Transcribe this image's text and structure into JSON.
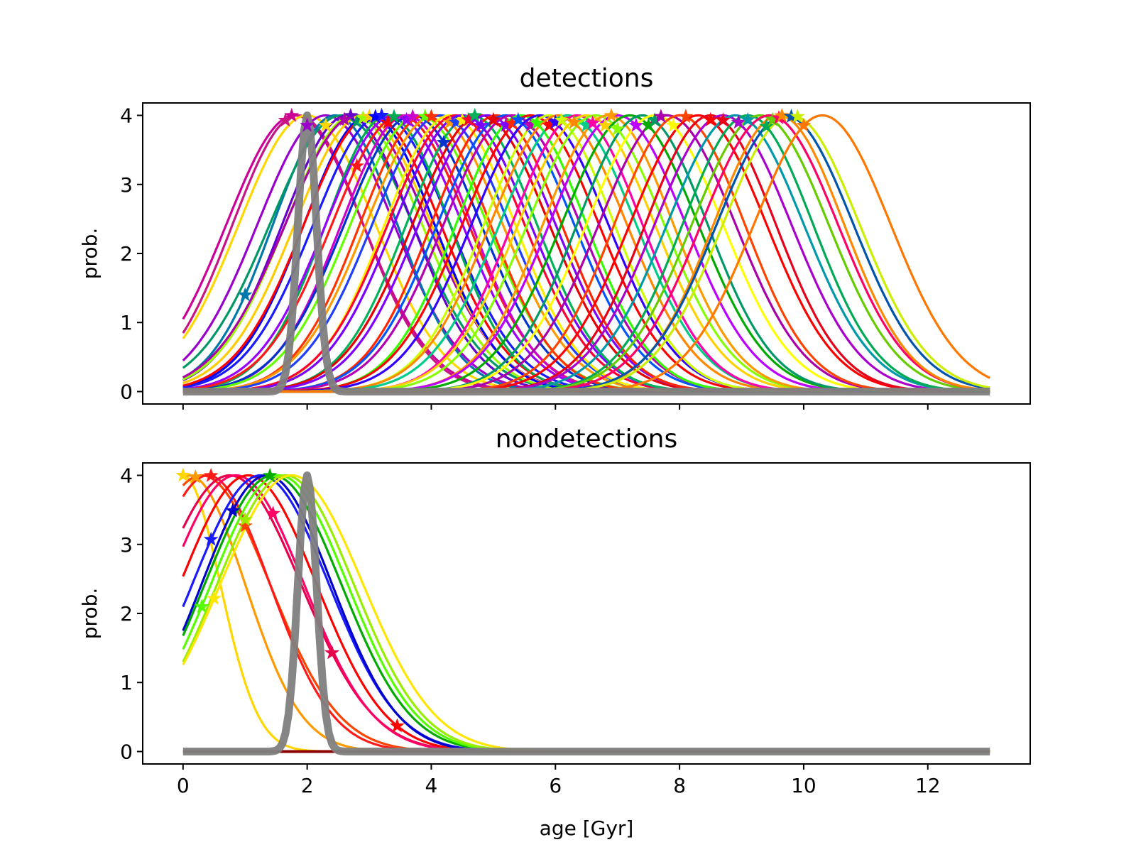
{
  "chart_data": [
    {
      "type": "line",
      "title": "detections",
      "xlabel": "",
      "ylabel": "prob.",
      "xlim": [
        -0.65,
        13.65
      ],
      "ylim": [
        -0.18,
        4.18
      ],
      "xticks": [
        0,
        2,
        4,
        6,
        8,
        10,
        12
      ],
      "xtick_labels_shown": false,
      "yticks": [
        0,
        1,
        2,
        3,
        4
      ],
      "grid": false,
      "curve_shape": "gaussian",
      "curve_peak": 4,
      "x_range": [
        0,
        13
      ],
      "reference_curve": {
        "center": 2.0,
        "sigma": 0.15,
        "peak": 4,
        "color": "#808080",
        "alpha": 1
      },
      "series": [
        {
          "mu": 1.8,
          "sigma": 1.1,
          "color": "#cc0099",
          "star_x": 1.75
        },
        {
          "mu": 1.85,
          "sigma": 1.05,
          "color": "#c71585",
          "star_x": 1.65
        },
        {
          "mu": 2.0,
          "sigma": 1.1,
          "color": "#ffd700",
          "star_x": 2.3
        },
        {
          "mu": 2.3,
          "sigma": 1.1,
          "color": "#9900cc",
          "star_x": 2.0
        },
        {
          "mu": 2.45,
          "sigma": 1.0,
          "color": "#0077aa",
          "star_x": 1.0
        },
        {
          "mu": 2.55,
          "sigma": 1.15,
          "color": "#009966",
          "star_x": 2.8
        },
        {
          "mu": 2.65,
          "sigma": 1.05,
          "color": "#6600cc",
          "star_x": 2.7
        },
        {
          "mu": 2.75,
          "sigma": 1.1,
          "color": "#99ff00",
          "star_x": 2.9
        },
        {
          "mu": 2.8,
          "sigma": 1.15,
          "color": "#aa00aa",
          "star_x": 2.6
        },
        {
          "mu": 2.9,
          "sigma": 1.1,
          "color": "#ffcc00",
          "star_x": 3.0
        },
        {
          "mu": 3.0,
          "sigma": 1.05,
          "color": "#0000ff",
          "star_x": 3.1
        },
        {
          "mu": 3.05,
          "sigma": 1.1,
          "color": "#ff0000",
          "star_x": 3.3
        },
        {
          "mu": 3.2,
          "sigma": 1.1,
          "color": "#1a1aff",
          "star_x": 3.2
        },
        {
          "mu": 3.3,
          "sigma": 1.0,
          "color": "#00aa55",
          "star_x": 3.4
        },
        {
          "mu": 3.4,
          "sigma": 1.1,
          "color": "#9900ff",
          "star_x": 3.6
        },
        {
          "mu": 3.5,
          "sigma": 1.1,
          "color": "#ff1a1a",
          "star_x": 2.8
        },
        {
          "mu": 3.6,
          "sigma": 1.05,
          "color": "#cc00cc",
          "star_x": 3.7
        },
        {
          "mu": 3.7,
          "sigma": 1.1,
          "color": "#0033cc",
          "star_x": 4.2
        },
        {
          "mu": 3.8,
          "sigma": 1.1,
          "color": "#66ff00",
          "star_x": 3.9
        },
        {
          "mu": 3.9,
          "sigma": 1.05,
          "color": "#ff3300",
          "star_x": 4.0
        },
        {
          "mu": 4.05,
          "sigma": 1.1,
          "color": "#ff9900",
          "star_x": 4.3
        },
        {
          "mu": 4.15,
          "sigma": 1.1,
          "color": "#1f3fff",
          "star_x": 4.4
        },
        {
          "mu": 4.3,
          "sigma": 1.05,
          "color": "#ffee00",
          "star_x": 4.5
        },
        {
          "mu": 4.4,
          "sigma": 1.1,
          "color": "#ff0033",
          "star_x": 4.6
        },
        {
          "mu": 4.5,
          "sigma": 1.1,
          "color": "#7a00ff",
          "star_x": 4.8
        },
        {
          "mu": 4.65,
          "sigma": 1.05,
          "color": "#00b359",
          "star_x": 4.7
        },
        {
          "mu": 4.8,
          "sigma": 1.1,
          "color": "#e60000",
          "star_x": 5.0
        },
        {
          "mu": 4.9,
          "sigma": 1.1,
          "color": "#8000ff",
          "star_x": 5.2
        },
        {
          "mu": 5.05,
          "sigma": 1.05,
          "color": "#ff2600",
          "star_x": 5.3
        },
        {
          "mu": 5.2,
          "sigma": 1.1,
          "color": "#0055ff",
          "star_x": 5.4
        },
        {
          "mu": 5.3,
          "sigma": 1.1,
          "color": "#b300b3",
          "star_x": 5.6
        },
        {
          "mu": 5.45,
          "sigma": 1.05,
          "color": "#33ff00",
          "star_x": 5.7
        },
        {
          "mu": 5.6,
          "sigma": 1.1,
          "color": "#ff0000",
          "star_x": 5.9
        },
        {
          "mu": 5.75,
          "sigma": 1.1,
          "color": "#3300ff",
          "star_x": 6.0
        },
        {
          "mu": 5.9,
          "sigma": 1.05,
          "color": "#ccff00",
          "star_x": 6.1
        },
        {
          "mu": 6.05,
          "sigma": 1.1,
          "color": "#ff8800",
          "star_x": 6.3
        },
        {
          "mu": 6.2,
          "sigma": 1.1,
          "color": "#00cc88",
          "star_x": 6.5
        },
        {
          "mu": 6.35,
          "sigma": 1.05,
          "color": "#ff00aa",
          "star_x": 6.6
        },
        {
          "mu": 6.5,
          "sigma": 1.1,
          "color": "#ffd000",
          "star_x": 6.8
        },
        {
          "mu": 6.65,
          "sigma": 1.1,
          "color": "#88ff00",
          "star_x": 7.0
        },
        {
          "mu": 6.85,
          "sigma": 1.05,
          "color": "#ff9900",
          "star_x": 6.9
        },
        {
          "mu": 7.0,
          "sigma": 1.1,
          "color": "#bb00ff",
          "star_x": 7.3
        },
        {
          "mu": 7.2,
          "sigma": 1.1,
          "color": "#00aa00",
          "star_x": 7.5
        },
        {
          "mu": 7.4,
          "sigma": 1.05,
          "color": "#009966",
          "star_x": 7.6
        },
        {
          "mu": 7.6,
          "sigma": 1.1,
          "color": "#ffff00",
          "star_x": 7.9
        },
        {
          "mu": 7.8,
          "sigma": 1.1,
          "color": "#aa00aa",
          "star_x": 7.7
        },
        {
          "mu": 8.0,
          "sigma": 1.05,
          "color": "#ff4400",
          "star_x": 8.1
        },
        {
          "mu": 8.3,
          "sigma": 1.1,
          "color": "#ff0000",
          "star_x": 8.5
        },
        {
          "mu": 8.5,
          "sigma": 1.05,
          "color": "#e6001a",
          "star_x": 8.7
        },
        {
          "mu": 8.7,
          "sigma": 1.1,
          "color": "#aa00cc",
          "star_x": 8.95
        },
        {
          "mu": 8.9,
          "sigma": 1.1,
          "color": "#0099aa",
          "star_x": 9.1
        },
        {
          "mu": 9.1,
          "sigma": 1.05,
          "color": "#00aa55",
          "star_x": 9.4
        },
        {
          "mu": 9.3,
          "sigma": 1.1,
          "color": "#66cc00",
          "star_x": 9.5
        },
        {
          "mu": 9.45,
          "sigma": 1.1,
          "color": "#ff0066",
          "star_x": 9.6
        },
        {
          "mu": 9.6,
          "sigma": 1.05,
          "color": "#ff8800",
          "star_x": 9.65
        },
        {
          "mu": 9.7,
          "sigma": 1.1,
          "color": "#0055aa",
          "star_x": 9.8
        },
        {
          "mu": 9.8,
          "sigma": 1.1,
          "color": "#ccee00",
          "star_x": 9.9
        },
        {
          "mu": 10.3,
          "sigma": 1.1,
          "color": "#ff7700",
          "star_x": 10.0
        }
      ]
    },
    {
      "type": "line",
      "title": "nondetections",
      "xlabel": "age [Gyr]",
      "ylabel": "prob.",
      "xlim": [
        -0.65,
        13.65
      ],
      "ylim": [
        -0.18,
        4.18
      ],
      "xticks": [
        0,
        2,
        4,
        6,
        8,
        10,
        12
      ],
      "xtick_labels_shown": true,
      "yticks": [
        0,
        1,
        2,
        3,
        4
      ],
      "grid": false,
      "curve_shape": "gaussian",
      "curve_peak": 4,
      "x_range": [
        0,
        13
      ],
      "reference_curve": {
        "center": 2.0,
        "sigma": 0.15,
        "peak": 4,
        "color": "#808080",
        "alpha": 1
      },
      "series": [
        {
          "mu": 0.0,
          "sigma": 0.6,
          "color": "#ffd700",
          "star_x": 0.0
        },
        {
          "mu": 0.1,
          "sigma": 0.9,
          "color": "#ff9900",
          "star_x": 0.2
        },
        {
          "mu": 0.3,
          "sigma": 1.1,
          "color": "#ff4400",
          "star_x": 1.0
        },
        {
          "mu": 0.4,
          "sigma": 1.0,
          "color": "#ff1a1a",
          "star_x": 0.45
        },
        {
          "mu": 0.75,
          "sigma": 1.15,
          "color": "#e6004c",
          "star_x": 2.4
        },
        {
          "mu": 0.85,
          "sigma": 1.1,
          "color": "#ff0066",
          "star_x": 1.45
        },
        {
          "mu": 1.05,
          "sigma": 1.1,
          "color": "#ff0000",
          "star_x": 3.45
        },
        {
          "mu": 1.25,
          "sigma": 1.1,
          "color": "#1a1aff",
          "star_x": 0.45
        },
        {
          "mu": 1.35,
          "sigma": 1.05,
          "color": "#0000cc",
          "star_x": 0.8
        },
        {
          "mu": 1.45,
          "sigma": 1.1,
          "color": "#00aa00",
          "star_x": 1.4
        },
        {
          "mu": 1.55,
          "sigma": 1.1,
          "color": "#55ff00",
          "star_x": 0.3
        },
        {
          "mu": 1.65,
          "sigma": 1.1,
          "color": "#99ee00",
          "star_x": 1.0
        },
        {
          "mu": 1.75,
          "sigma": 1.15,
          "color": "#ffe600",
          "star_x": 0.5
        }
      ],
      "baseline_color": "#8b0000"
    }
  ]
}
